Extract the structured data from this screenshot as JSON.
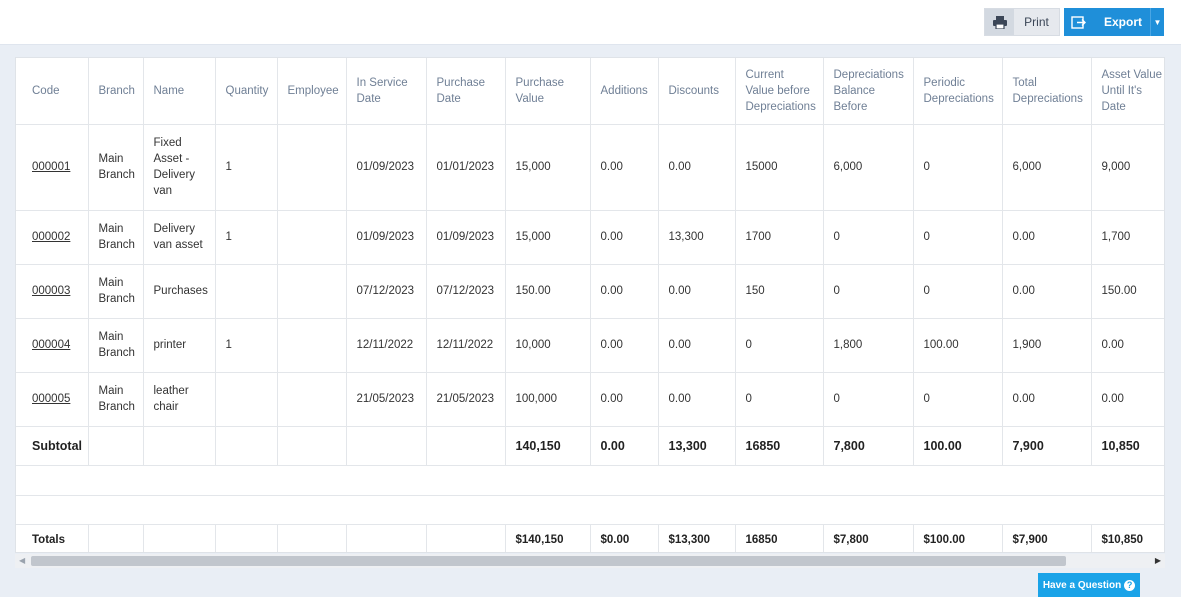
{
  "toolbar": {
    "print_label": "Print",
    "export_label": "Export",
    "print_icon": "printer-icon",
    "export_icon": "export-icon",
    "accent_color": "#1f8fd9"
  },
  "table": {
    "headers": {
      "code": "Code",
      "branch": "Branch",
      "name": "Name",
      "quantity": "Quantity",
      "employee": "Employee",
      "in_service_date": "In Service Date",
      "purchase_date": "Purchase Date",
      "purchase_value": "Purchase Value",
      "additions": "Additions",
      "discounts": "Discounts",
      "current_value": "Current Value before Depreciations",
      "dep_balance_before": "Depreciations Balance Before",
      "periodic_dep": "Periodic Depreciations",
      "total_dep": "Total Depreciations",
      "asset_value": "Asset Value Until It's Date"
    },
    "rows": [
      {
        "code": "000001",
        "branch": "Main Branch",
        "name": "Fixed Asset - Delivery van",
        "quantity": "1",
        "employee": "",
        "in_service_date": "01/09/2023",
        "purchase_date": "01/01/2023",
        "purchase_value": "15,000",
        "additions": "0.00",
        "discounts": "0.00",
        "current_value": "15000",
        "dep_balance_before": "6,000",
        "periodic_dep": "0",
        "total_dep": "6,000",
        "asset_value": "9,000"
      },
      {
        "code": "000002",
        "branch": "Main Branch",
        "name": "Delivery van asset",
        "quantity": "1",
        "employee": "",
        "in_service_date": "01/09/2023",
        "purchase_date": "01/09/2023",
        "purchase_value": "15,000",
        "additions": "0.00",
        "discounts": "13,300",
        "current_value": "1700",
        "dep_balance_before": "0",
        "periodic_dep": "0",
        "total_dep": "0.00",
        "asset_value": "1,700"
      },
      {
        "code": "000003",
        "branch": "Main Branch",
        "name": "Purchases",
        "quantity": "",
        "employee": "",
        "in_service_date": "07/12/2023",
        "purchase_date": "07/12/2023",
        "purchase_value": "150.00",
        "additions": "0.00",
        "discounts": "0.00",
        "current_value": "150",
        "dep_balance_before": "0",
        "periodic_dep": "0",
        "total_dep": "0.00",
        "asset_value": "150.00"
      },
      {
        "code": "000004",
        "branch": "Main Branch",
        "name": "printer",
        "quantity": "1",
        "employee": "",
        "in_service_date": "12/11/2022",
        "purchase_date": "12/11/2022",
        "purchase_value": "10,000",
        "additions": "0.00",
        "discounts": "0.00",
        "current_value": "0",
        "dep_balance_before": "1,800",
        "periodic_dep": "100.00",
        "total_dep": "1,900",
        "asset_value": "0.00"
      },
      {
        "code": "000005",
        "branch": "Main Branch",
        "name": "leather chair",
        "quantity": "",
        "employee": "",
        "in_service_date": "21/05/2023",
        "purchase_date": "21/05/2023",
        "purchase_value": "100,000",
        "additions": "0.00",
        "discounts": "0.00",
        "current_value": "0",
        "dep_balance_before": "0",
        "periodic_dep": "0",
        "total_dep": "0.00",
        "asset_value": "0.00"
      }
    ],
    "subtotal": {
      "label": "Subtotal",
      "purchase_value": "140,150",
      "additions": "0.00",
      "discounts": "13,300",
      "current_value": "16850",
      "dep_balance_before": "7,800",
      "periodic_dep": "100.00",
      "total_dep": "7,900",
      "asset_value": "10,850"
    },
    "totals": {
      "label": "Totals",
      "purchase_value": "$140,150",
      "additions": "$0.00",
      "discounts": "$13,300",
      "current_value": "16850",
      "dep_balance_before": "$7,800",
      "periodic_dep": "$100.00",
      "total_dep": "$7,900",
      "asset_value": "$10,850"
    }
  },
  "help": {
    "label": "Have a Question",
    "icon": "question-icon"
  }
}
